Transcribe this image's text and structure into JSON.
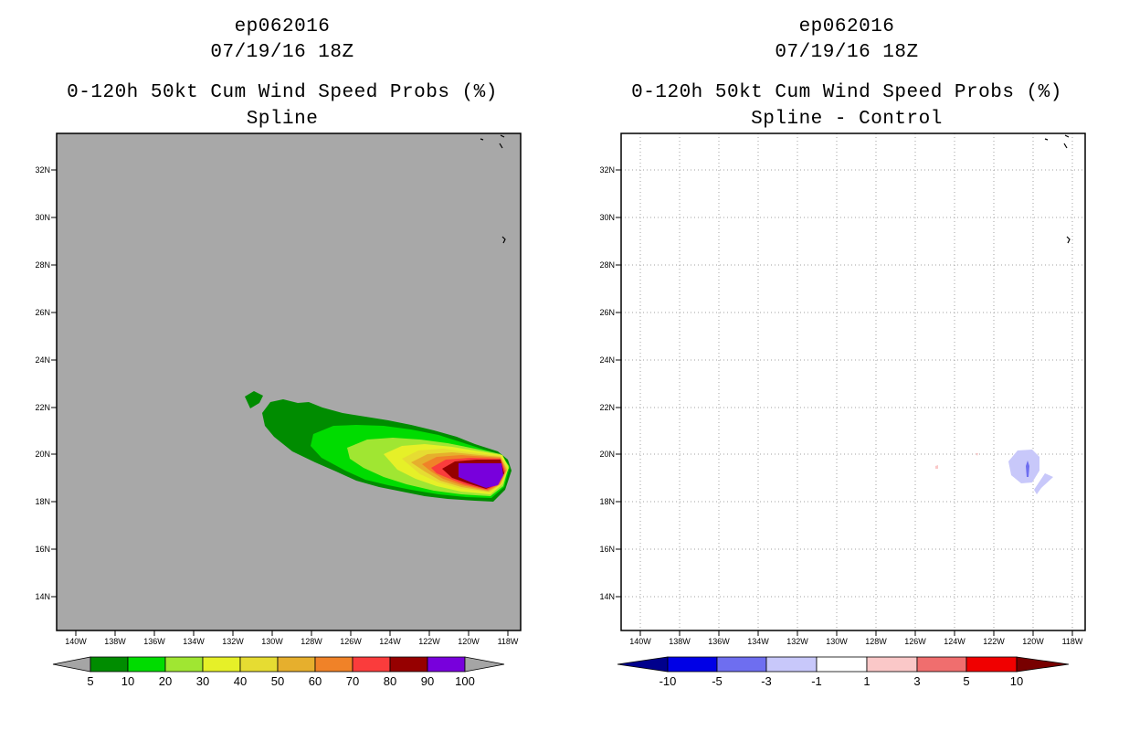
{
  "panels": [
    {
      "storm_id": "ep062016",
      "datetime": "07/19/16 18Z",
      "product": "0-120h 50kt Cum Wind Speed Probs (%)",
      "method": "Spline",
      "lat_labels": [
        "32N",
        "30N",
        "28N",
        "26N",
        "24N",
        "22N",
        "20N",
        "18N",
        "16N",
        "14N"
      ],
      "lon_labels": [
        "140W",
        "138W",
        "136W",
        "134W",
        "132W",
        "130W",
        "128W",
        "126W",
        "124W",
        "122W",
        "120W",
        "118W"
      ],
      "colorbar": {
        "ticks": [
          "5",
          "10",
          "20",
          "30",
          "40",
          "50",
          "60",
          "70",
          "80",
          "90",
          "100"
        ],
        "colors": [
          "#a5a5a5",
          "#008c00",
          "#00dc00",
          "#a0e632",
          "#e6f028",
          "#e6dc32",
          "#e6af2d",
          "#f08228",
          "#fa3c3c",
          "#960000",
          "#7800dc",
          "#a5a5a5"
        ]
      }
    },
    {
      "storm_id": "ep062016",
      "datetime": "07/19/16 18Z",
      "product": "0-120h 50kt Cum Wind Speed Probs (%)",
      "method": "Spline - Control",
      "lat_labels": [
        "32N",
        "30N",
        "28N",
        "26N",
        "24N",
        "22N",
        "20N",
        "18N",
        "16N",
        "14N"
      ],
      "lon_labels": [
        "140W",
        "138W",
        "136W",
        "134W",
        "132W",
        "130W",
        "128W",
        "126W",
        "124W",
        "122W",
        "120W",
        "118W"
      ],
      "colorbar": {
        "ticks": [
          "-10",
          "-5",
          "-3",
          "-1",
          "1",
          "3",
          "5",
          "10"
        ],
        "colors": [
          "#00008c",
          "#0000e6",
          "#6e6ef0",
          "#c8c8fa",
          "#ffffff",
          "#fac8c8",
          "#f06e6e",
          "#f00000",
          "#780000"
        ]
      }
    }
  ],
  "map_colors": {
    "left_background": "#a8a8a8",
    "right_background": "#ffffff"
  }
}
